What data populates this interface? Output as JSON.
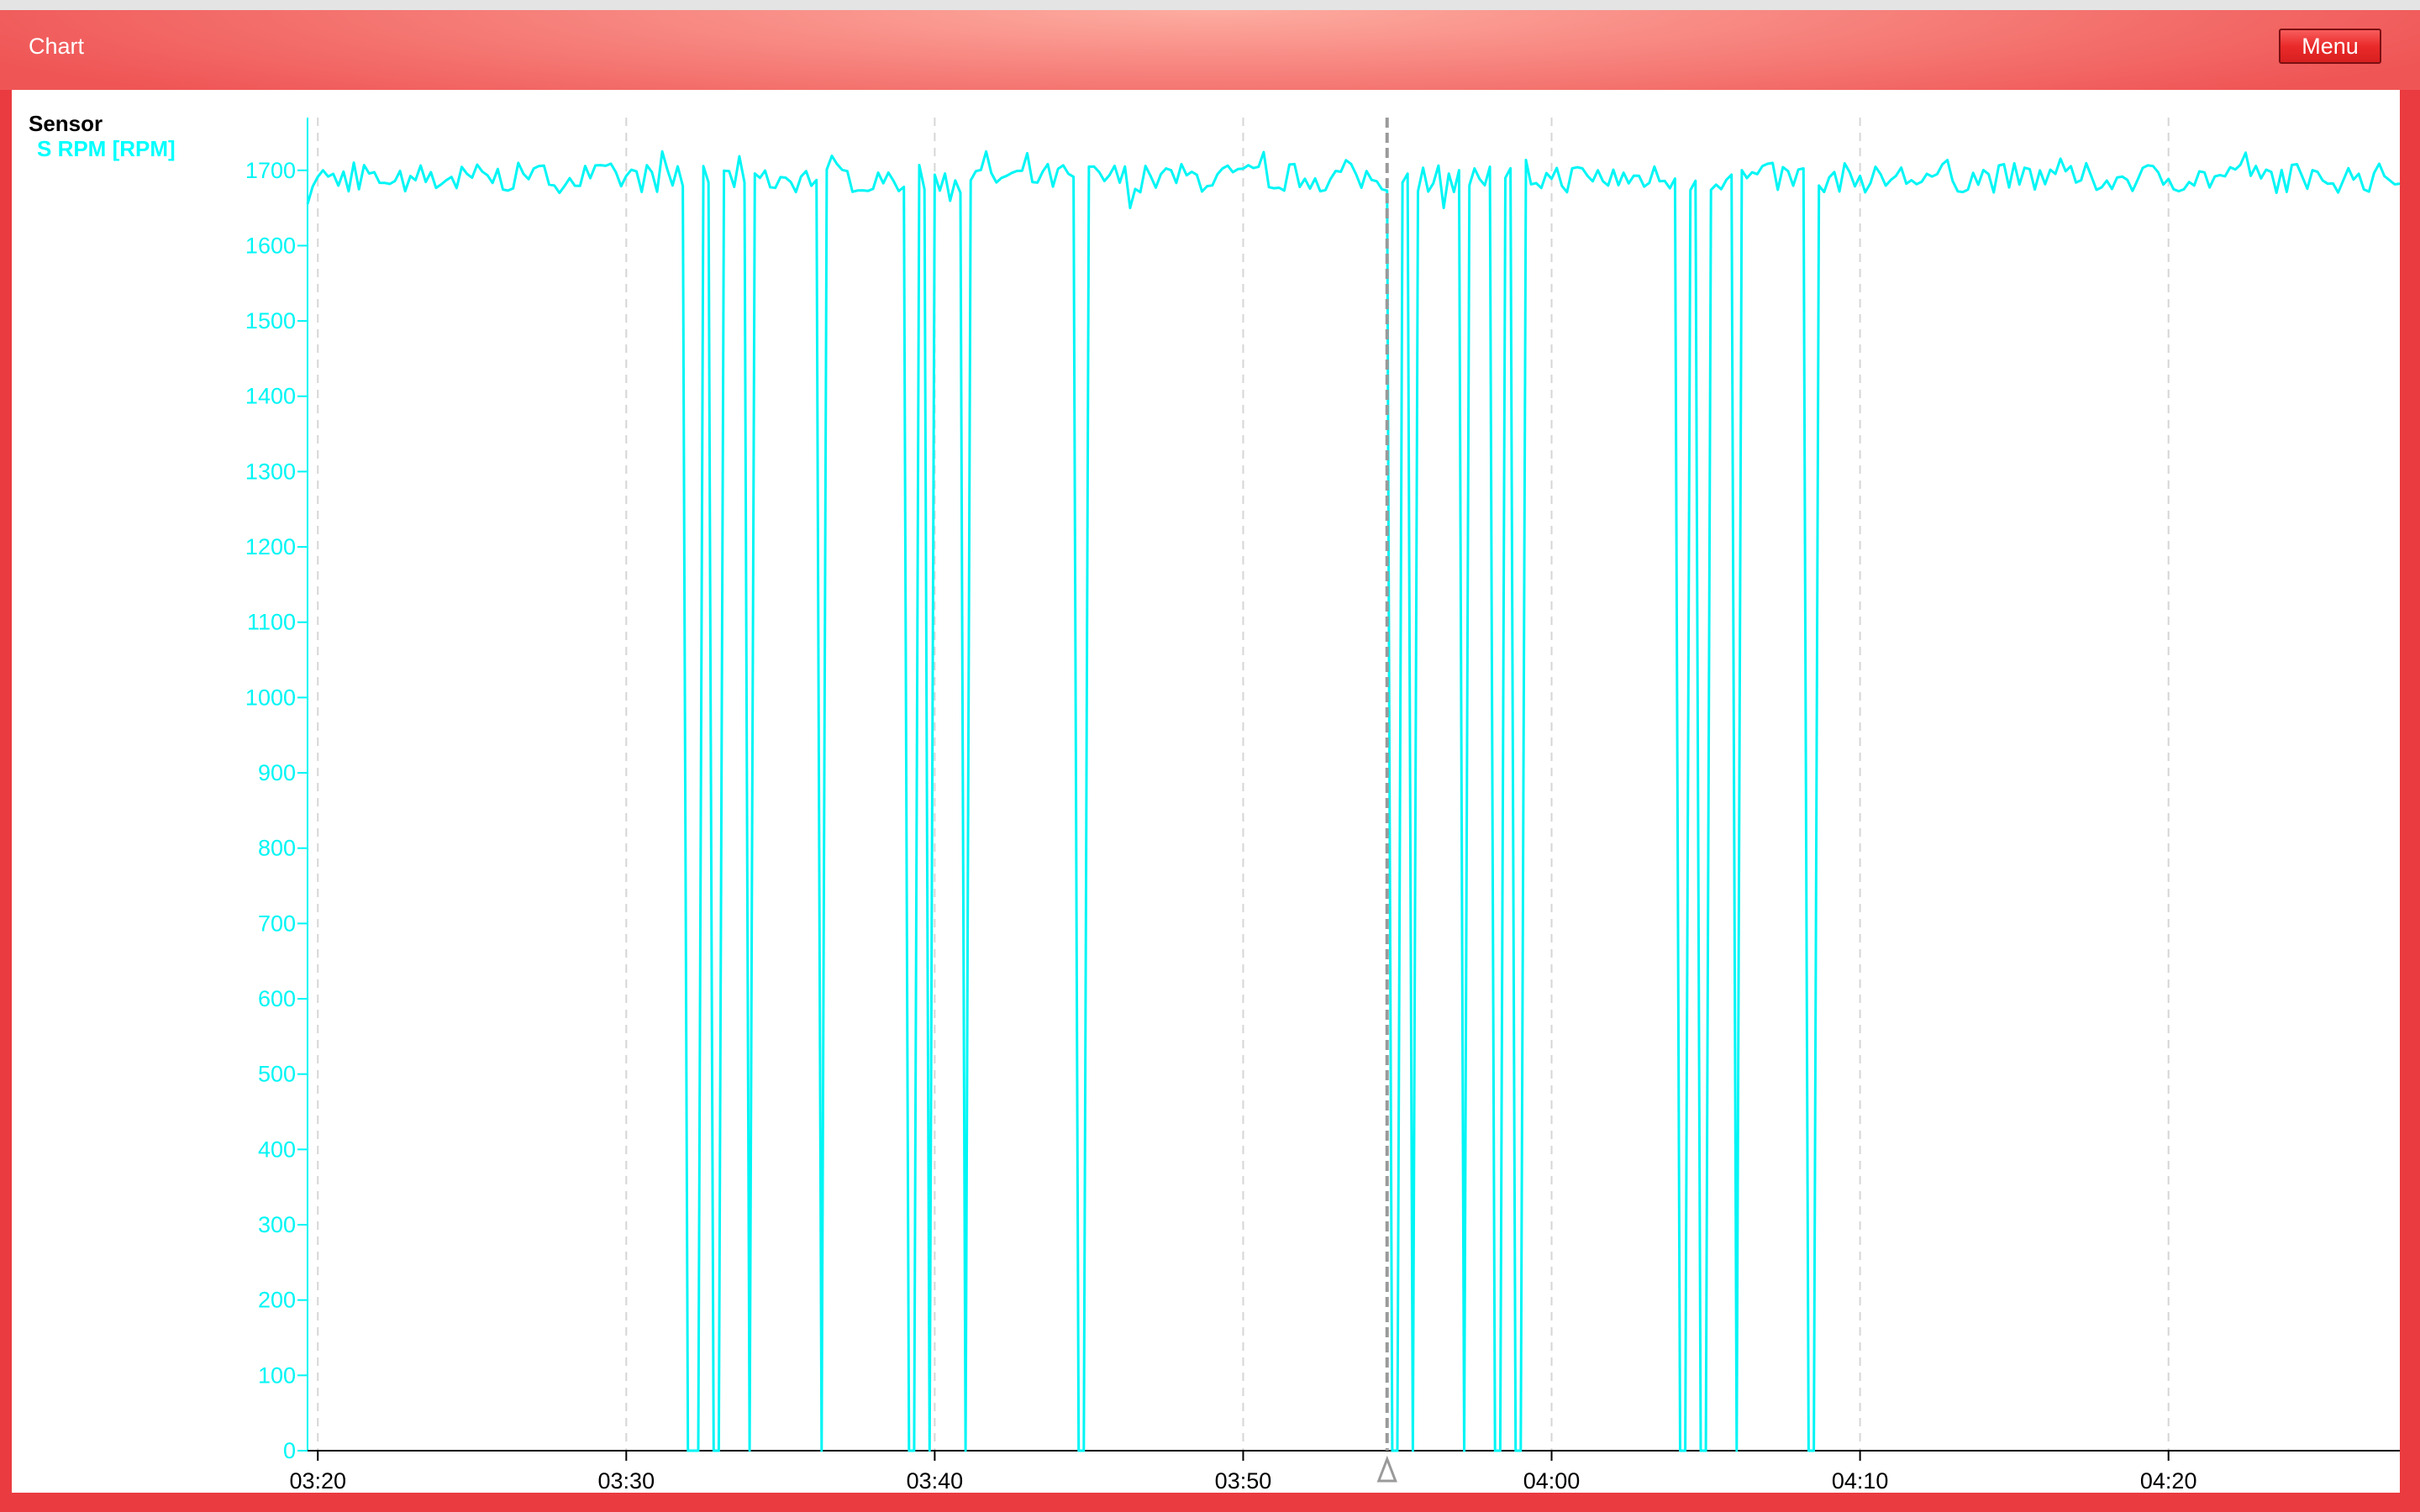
{
  "window": {
    "title": "Chart",
    "menu_label": "Menu"
  },
  "colors": {
    "series": "#00f5f5",
    "axis": "#000000",
    "grid": "#d6d6d6",
    "cursor": "#9a9a9a",
    "frame": "#ea3b40"
  },
  "chart_data": {
    "type": "line",
    "legend_title": "Sensor",
    "legend_placement": "top-left",
    "grid": "vertical-dashed",
    "xlabel": "",
    "ylabel": "",
    "xlim": [
      "03:19:40",
      "04:27:30"
    ],
    "ylim": [
      0,
      1770
    ],
    "x_ticks": [
      "03:20",
      "03:30",
      "03:40",
      "03:50",
      "04:00",
      "04:10",
      "04:20"
    ],
    "y_ticks": [
      0,
      100,
      200,
      300,
      400,
      500,
      600,
      700,
      800,
      900,
      1000,
      1100,
      1200,
      1300,
      1400,
      1500,
      1600,
      1700
    ],
    "cursor_time": "03:54:40",
    "series": [
      {
        "name": "S RPM [RPM]",
        "baseline_value": 1690,
        "noise_range": [
          1650,
          1725
        ],
        "drops_to_zero": [
          {
            "start": "03:32:00",
            "end": "03:32:20"
          },
          {
            "start": "03:32:50",
            "end": "03:33:00"
          },
          {
            "start": "03:33:55",
            "end": "03:34:05"
          },
          {
            "start": "03:36:15",
            "end": "03:36:25"
          },
          {
            "start": "03:39:10",
            "end": "03:39:20"
          },
          {
            "start": "03:39:45",
            "end": "03:39:55"
          },
          {
            "start": "03:40:55",
            "end": "03:41:05"
          },
          {
            "start": "03:44:40",
            "end": "03:44:50"
          },
          {
            "start": "03:54:50",
            "end": "03:55:00"
          },
          {
            "start": "03:55:25",
            "end": "03:55:35"
          },
          {
            "start": "03:57:05",
            "end": "03:57:15"
          },
          {
            "start": "03:58:10",
            "end": "03:58:20"
          },
          {
            "start": "03:58:50",
            "end": "03:59:00"
          },
          {
            "start": "04:04:10",
            "end": "04:04:20"
          },
          {
            "start": "04:04:50",
            "end": "04:05:00"
          },
          {
            "start": "04:05:55",
            "end": "04:06:05"
          },
          {
            "start": "04:08:20",
            "end": "04:08:30"
          }
        ]
      }
    ]
  }
}
